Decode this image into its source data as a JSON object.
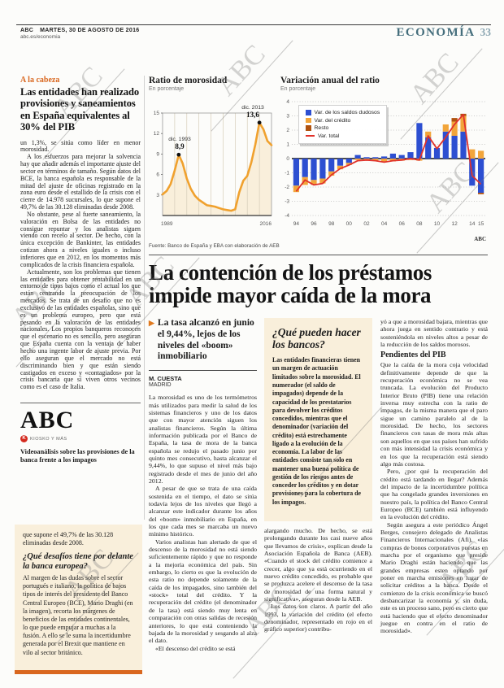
{
  "watermark": "ABC",
  "header": {
    "brand": "ABC",
    "date": "MARTES, 30 DE AGOSTO DE 2016",
    "site": "abc.es/economia",
    "section": "ECONOMÍA",
    "page": "33"
  },
  "sidebar": {
    "kicker": "A la cabeza",
    "headline": "Las entidades han realizado provisiones y saneamientos en España equivalentes al 30% del PIB",
    "paragraphs": [
      "un 1,3%, se sitúa como líder en menor morosidad.",
      "A los esfuerzos para mejorar la solvencia hay que añadir además el importante ajuste del sector en términos de tamaño. Según datos del BCE, la banca española es responsable de la mitad del ajuste de oficinas registrado en la zona euro desde el estallido de la crisis con el cierre de 14.978 sucursales, lo que supone el 49,7% de las 30.128 eliminadas desde 2008.",
      "No obstante, pese al fuerte saneamiento, la valoración en Bolsa de las entidades no consigue repuntar y los analistas siguen viendo con recelo al sector. De hecho, con la única excepción de Bankinter, las entidades cotizan ahora a niveles iguales o incluso inferiores que en 2012, en los momentos más complicados de la crisis financiera española.",
      "Actualmente, son los problemas que tienen las entidades para obtener rentabilidad en un entorno de tipos bajos como el actual los que están centrando la preocupación de los mercados. Se trata de un desafío que no es exclusivo de las entidades españolas, sino que es un problema europeo, pero que está pesando en la valoración de las entidades nacionales. Los propios banqueros reconocen que el escenario no es sencillo, pero aseguran que España cuenta con la ventaja de haber hecho una ingente labor de ajuste previa. Por ello aseguran que el mercado no está discriminando bien y que están siendo castigados en exceso y «contagiados» por la crisis bancaria que sí viven otros vecinos como es el caso de Italia."
    ],
    "media": {
      "logo": "ABC",
      "badge": "KIOSKO Y MÁS",
      "caption": "Videoanálisis sobre las provisiones de la banca frente a los impagos"
    },
    "qa_box": {
      "intro": "que supone el 49,7% de las 30.128 eliminadas desde 2008.",
      "question": "¿Qué desafíos tiene por delante la banca europea?",
      "answer": "Al margen de las dudas sobre el sector portugués e italiano, la política de bajos tipos de interés del presidente del Banco Central Europeo (BCE), Mario Draghi (en la imagen), recorta los márgenes de beneficios de las entidades continentales, lo que puede empujar a muchas a la fusión. A ello se le suma la incertidumbre generada por el Brexit que mantiene en vilo al sector británico."
    }
  },
  "charts": {
    "source": "Fuente: Banco de España y EBA con elaboración de AEB",
    "credit": "ABC"
  },
  "chart_data": [
    {
      "type": "line",
      "title": "Ratio de morosidad",
      "subtitle": "En porcentaje",
      "x": [
        1989,
        1990,
        1991,
        1992,
        1993,
        1994,
        1995,
        1996,
        1997,
        1998,
        1999,
        2000,
        2001,
        2002,
        2003,
        2004,
        2005,
        2006,
        2007,
        2008,
        2009,
        2010,
        2011,
        2012,
        2013,
        2014,
        2015,
        2016
      ],
      "y": [
        3.1,
        3.6,
        4.6,
        6.6,
        8.9,
        7.6,
        5.4,
        3.9,
        2.9,
        2.3,
        1.9,
        1.5,
        1.4,
        1.3,
        1.1,
        0.9,
        0.8,
        0.7,
        0.9,
        3.4,
        5.1,
        5.8,
        7.8,
        10.4,
        13.6,
        12.6,
        10.9,
        10.3
      ],
      "ylim": [
        0,
        15
      ],
      "yticks": [
        3,
        6,
        9,
        12,
        15
      ],
      "xtick_labels": [
        "1989",
        "2016"
      ],
      "line_color": "#f0a12e",
      "area_color": "#f9efdb",
      "annotations": [
        {
          "x": 1993,
          "y": 8.9,
          "label": "dic. 1993",
          "value": "8,9"
        },
        {
          "x": 2013,
          "y": 13.6,
          "label": "dic. 2013",
          "value": "13,6"
        }
      ]
    },
    {
      "type": "bar",
      "title": "Variación anual del ratio",
      "subtitle": "En porcentaje",
      "categories": [
        "94",
        "95",
        "96",
        "97",
        "98",
        "99",
        "00",
        "01",
        "02",
        "03",
        "04",
        "05",
        "06",
        "07",
        "08",
        "09",
        "10",
        "11",
        "12",
        "13",
        "14",
        "15"
      ],
      "series": [
        {
          "name": "Var. de los saldos dudosos",
          "color": "#2d4fd1",
          "values": [
            -1.9,
            -1.3,
            -1.5,
            -1.4,
            -0.9,
            -0.5,
            -0.3,
            0.25,
            0.1,
            0.1,
            0.15,
            0.35,
            0.25,
            0.45,
            2.5,
            1.5,
            0.75,
            1.9,
            1.6,
            1.9,
            -1.9,
            -2.4
          ]
        },
        {
          "name": "Var. del crédito",
          "color": "#f2a53a",
          "values": [
            -0.45,
            -0.55,
            -0.35,
            -0.35,
            -0.3,
            -0.25,
            -0.15,
            -0.1,
            -0.1,
            -0.15,
            -0.2,
            -0.2,
            -0.15,
            -0.1,
            -0.15,
            0.4,
            0,
            0.5,
            1.0,
            1.1,
            0.65,
            0.55
          ]
        },
        {
          "name": "Resto",
          "color": "#b05210",
          "values": [
            0,
            0,
            0,
            0,
            0,
            0,
            0,
            0,
            0,
            0,
            0,
            0,
            0,
            0,
            0,
            0,
            0,
            0,
            0.25,
            0.15,
            0,
            -0.1
          ]
        },
        {
          "name": "Var. total",
          "color": "#e0312a",
          "type": "line",
          "values": [
            -2.3,
            -1.5,
            -1.85,
            -1.75,
            -1.15,
            -0.7,
            -0.45,
            -0.15,
            -0.1,
            -0.15,
            -0.25,
            -0.15,
            -0.1,
            0,
            -0.1,
            1.6,
            0.7,
            1.5,
            2.4,
            3.1,
            -1.2,
            -1.8
          ]
        }
      ],
      "ylim": [
        -4,
        4
      ],
      "yticks": [
        4,
        3,
        2,
        1,
        0,
        -1,
        -2,
        -3,
        -4
      ],
      "xticks": [
        "94",
        "96",
        "98",
        "00",
        "02",
        "04",
        "06",
        "08",
        "10",
        "12",
        "14",
        "15"
      ]
    }
  ],
  "article": {
    "headline": "La contención de los préstamos impide mayor caída de la mora",
    "standfirst": "La tasa alcanzó en junio el 9,44%, lejos de los niveles del «boom» inmobiliario",
    "byline": "M. CUESTA",
    "dateline": "MADRID",
    "col1": [
      "La morosidad es uno de los termómetros más utilizados para medir la salud de los sistemas financieros y uno de los datos que con mayor atención siguen los analistas financieros. Según la última información publicada por el Banco de España, la tasa de mora de la banca española se redujo el pasado junio por quinto mes consecutivo, hasta alcanzar el 9,44%, lo que supuso el nivel más bajo registrado desde el mes de junio del año 2012.",
      "A pesar de que se trata de una caída sostenida en el tiempo, el dato se sitúa todavía lejos de los niveles que llegó a alcanzar este indicador durante los años del «boom» inmobiliario en España, en los que cada mes se marcaba un nuevo mínimo histórico.",
      "Varios analistas han alertado de que el descenso de la morosidad no está siendo suficientemente rápido y que no responde a la mejoría económica del país. Sin embargo, lo cierto es que la evolución de esta ratio no depende solamente de la caída de los impagados, sino también del «stock» total del crédito. Y la recuperación del crédito (el denominador de la tasa) está siendo muy lenta en comparación con otras salidas de recesión anteriores, lo que está conteniendo la bajada de la morosidad y sesgando al alza el dato.",
      "«El descenso del crédito se está"
    ],
    "infobox": {
      "title": "¿Qué pueden hacer los bancos?",
      "body": "Las entidades financieras tienen un margen de actuación limitados sobre la morosidad. El numerador (el saldo de impagados) depende de la capacidad de los prestatarios para devolver los créditos concedidos, mientras que el denominador (variación del crédito) está estrechamente ligado a la evolución de la economía. La labor de las entidades consiste tan solo en mantener una buena política de gestión de los riesgos antes de conceder los créditos y en dotar provisiones para la cobertura de los impagos."
    },
    "col2": [
      "alargando mucho. De hecho, se está prolongando durante los casi nueve años que llevamos de crisis», explican desde la Asociación Española de Banca (AEB). «Cuando el stock del crédito comience a crecer, algo que ya está ocurriendo en el nuevo crédito concedido, es probable que se produzca acelere el descenso de la tasa de morosidad de una forma natural y significativa», aseguran desde la AEB.",
      "Los datos son claros. A partir del año 1993, la variación del crédito (el efecto denominador, representado en rojo en el gráfico superior) contribu-"
    ],
    "col3": {
      "p1": "yó a que a morosidad bajara, mientras que ahora juega en sentido contrario y está sosteniéndola en niveles altos a pesar de la reducción de los saldos morosos.",
      "subhead": "Pendientes del PIB",
      "p2": "Que la caída de la mora coja velocidad definitivamente depende de que la recuperación económica no se vea truncada. La evolución del Producto Interior Bruto (PIB) tiene una relación inversa muy estrecha con la ratio de impagos, de la misma manera que el paro sigue un camino paralelo al de la morosidad. De hecho, los sectores financieros con tasas de mora más altas son aquellos en que sus países han sufrido con más intensidad la crisis económica y en los que la recuperación está siendo algo más costosa.",
      "p3": "Pero, ¿por qué la recuperación del crédito está tardando en llegar? Además del impacto de la incertidumbre política que ha congelado grandes inversiones en nuestro país, la política del Banco Central Europeo (BCE) también está influyendo en la evolución del crédito.",
      "p4": "Según asegura a este periódico Ángel Berges, consejero delegado de Analistas Financieros Internacionales (Afi), «las compras de bonos corporativos puestas en marcha por el organismo que preside Mario Draghi están haciendo que las grandes empresas esten optando por poner en marcha emisiones en lugar de solicitar créditos a la banca. Desde el comienzo de la crisis económica se buscó desbancarizar la economía y, sin duda, este es un proceso sano, pero es cierto que está haciendo que el efecto denominador juegue en contra en el ratio de morosidad»."
    }
  }
}
